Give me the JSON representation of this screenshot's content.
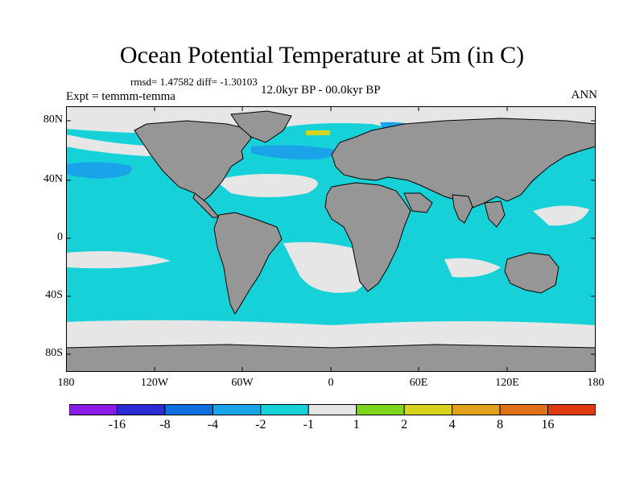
{
  "title": "Ocean Potential Temperature at 5m (in C)",
  "stats": "rmsd= 1.47582 diff= -1.30103",
  "expt": "Expt = temmm-temma",
  "period": "12.0kyr BP - 00.0kyr BP",
  "season": "ANN",
  "lat_labels": [
    "80N",
    "40N",
    "0",
    "40S",
    "80S"
  ],
  "lon_labels": [
    "180",
    "120W",
    "60W",
    "0",
    "60E",
    "120E",
    "180"
  ],
  "colorbar": {
    "ticks": [
      "-16",
      "-8",
      "-4",
      "-2",
      "-1",
      "1",
      "2",
      "4",
      "8",
      "16"
    ],
    "colors": [
      "#8a1ce6",
      "#2b2bd6",
      "#0f6ee0",
      "#1aa3e8",
      "#16d2d8",
      "#e6e6e6",
      "#7fd61e",
      "#d6d21e",
      "#e0a21a",
      "#e0701a",
      "#e03a12"
    ]
  },
  "colors": {
    "land": "#969696",
    "ocean_cool": "#16d2d8",
    "ocean_cooler": "#1aa3e8",
    "ocean_neutral": "#e6e6e6",
    "warm_patch": "#d6d21e"
  }
}
